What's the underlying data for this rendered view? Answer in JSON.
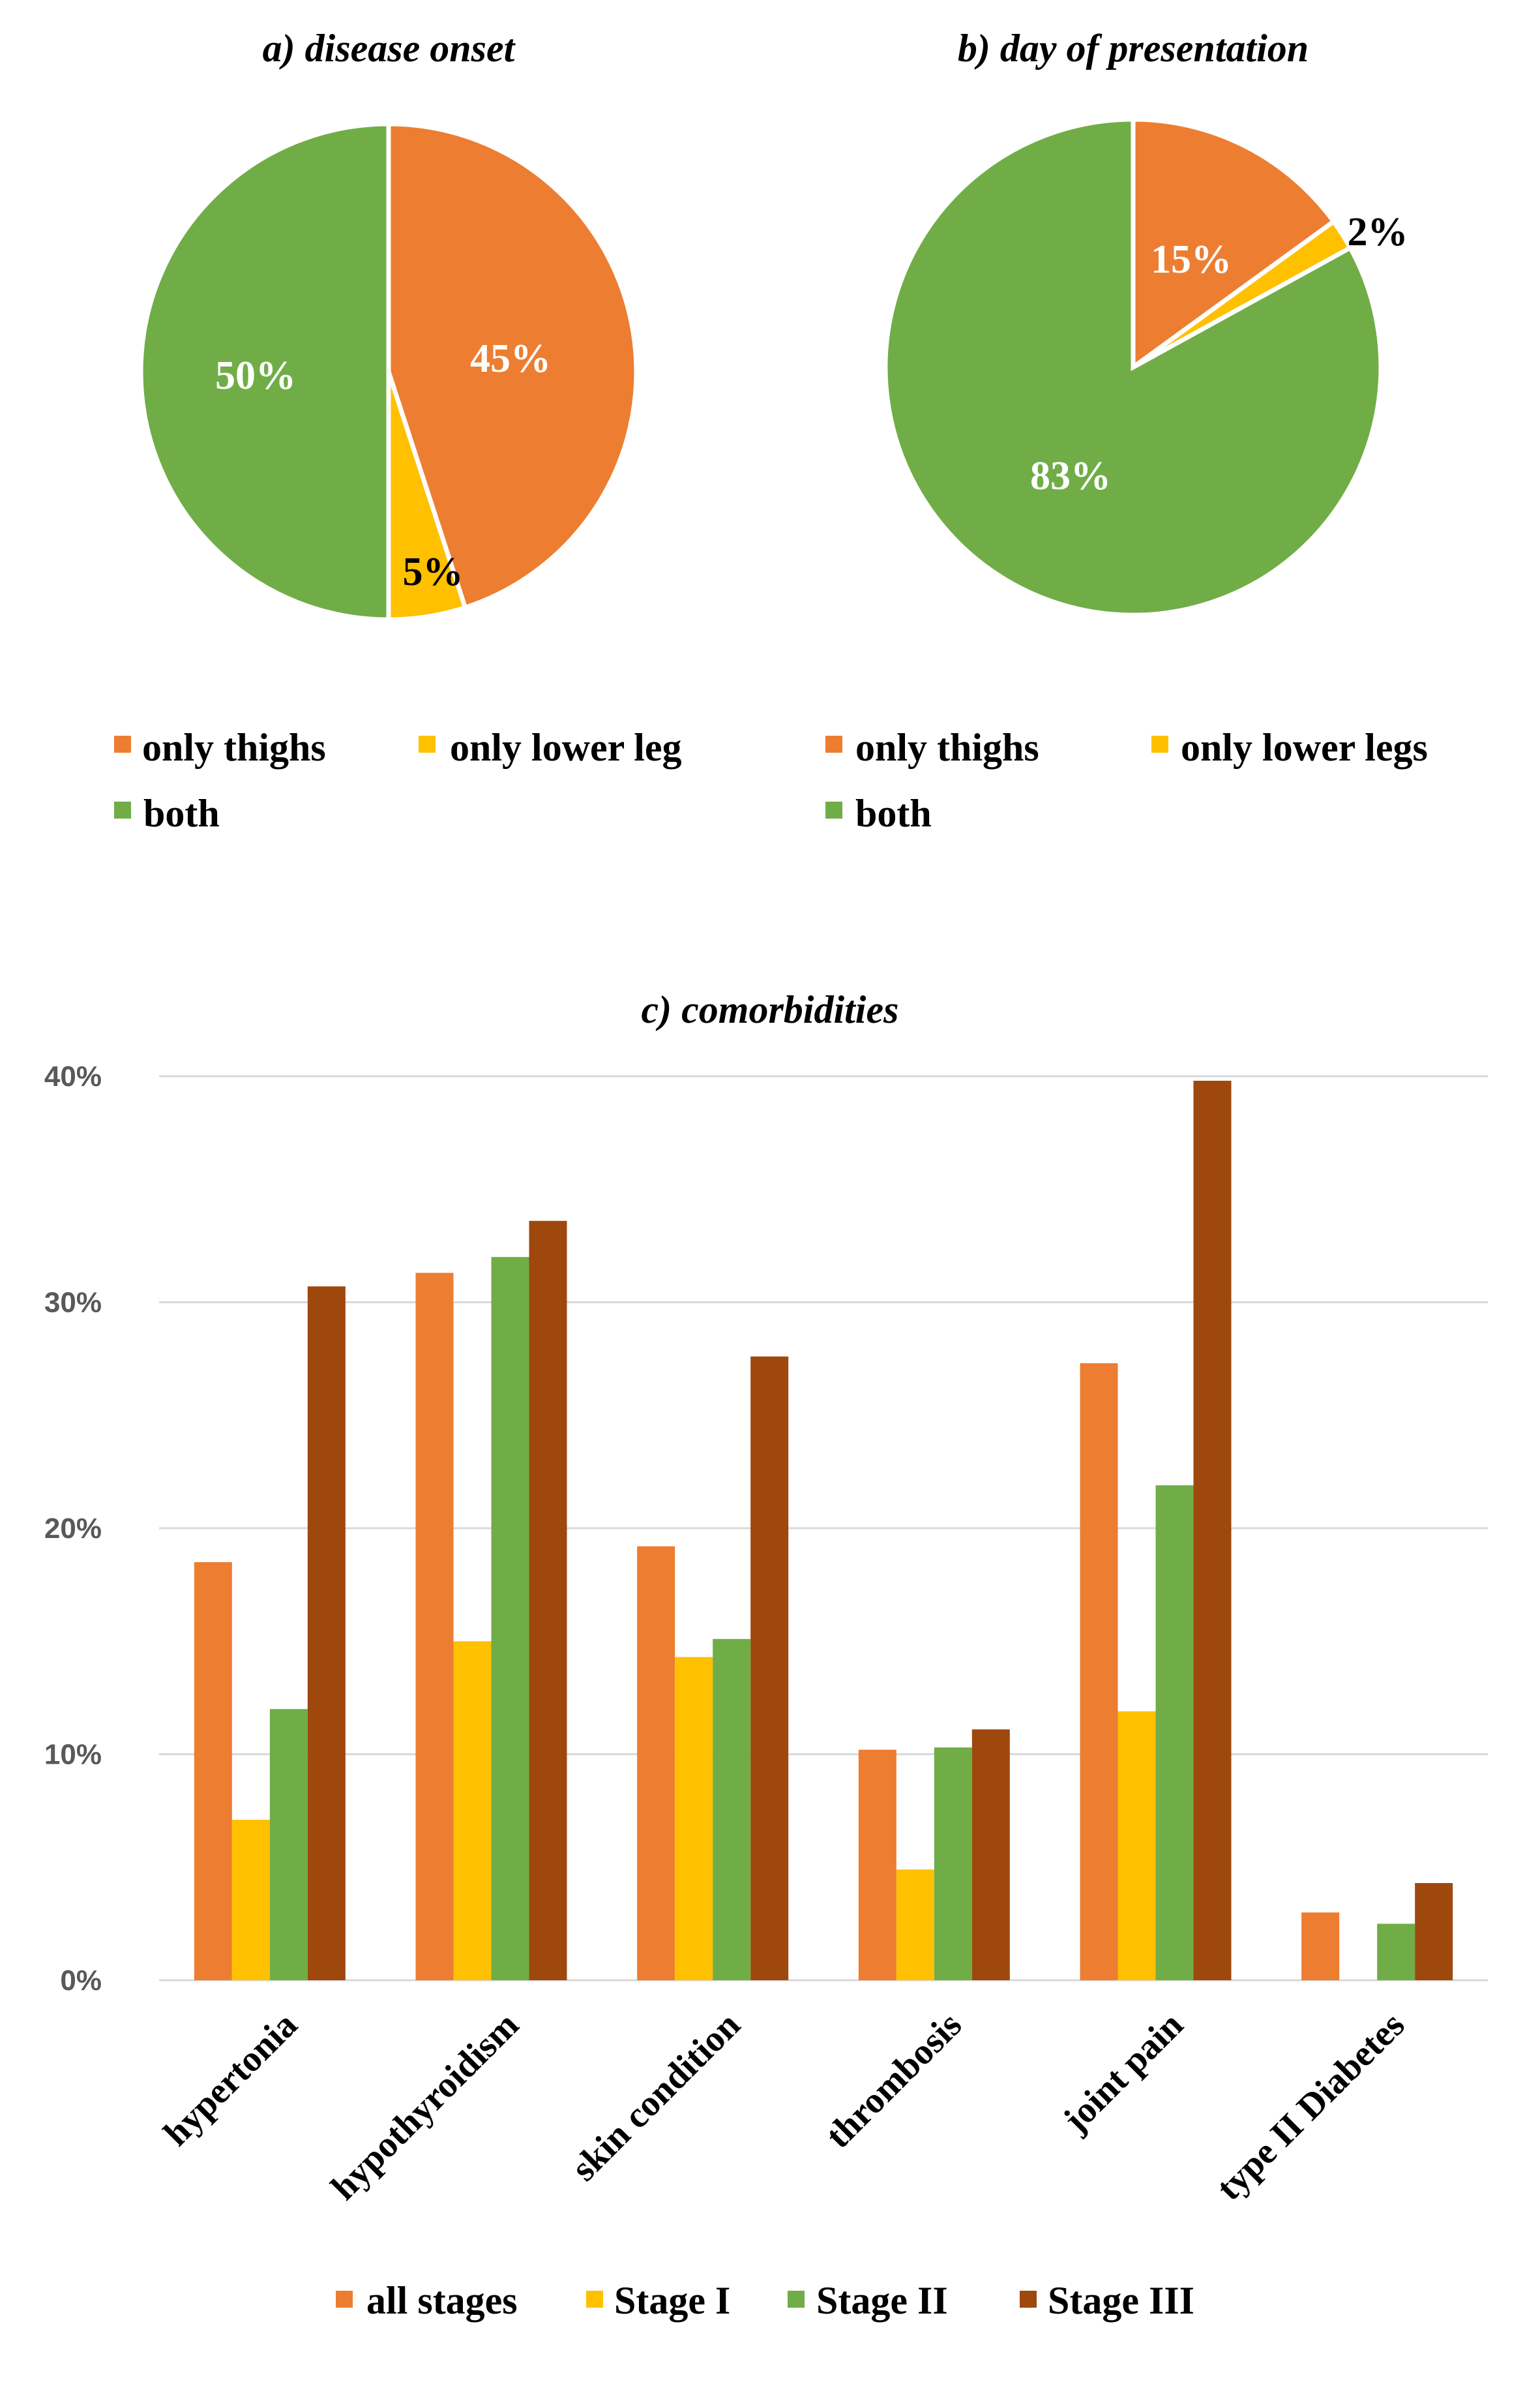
{
  "colors": {
    "thighs": "#ED7D31",
    "lower_leg": "#FFC000",
    "both": "#70AD47",
    "stage3": "#9E480E",
    "grid": "#D9D9D9",
    "axis_text": "#595959"
  },
  "chart_data": [
    {
      "type": "pie",
      "title": "a) disease onset",
      "slices": [
        {
          "label": "only thighs",
          "value": 45,
          "text": "45%",
          "color": "#ED7D31",
          "text_color": "#FFFFFF"
        },
        {
          "label": "only lower leg",
          "value": 5,
          "text": "5%",
          "color": "#FFC000",
          "text_color": "#000000"
        },
        {
          "label": "both",
          "value": 50,
          "text": "50%",
          "color": "#70AD47",
          "text_color": "#FFFFFF"
        }
      ],
      "legend": [
        "only thighs",
        "only lower leg",
        "both"
      ]
    },
    {
      "type": "pie",
      "title": "b) day of presentation",
      "slices": [
        {
          "label": "only thighs",
          "value": 15,
          "text": "15%",
          "color": "#ED7D31",
          "text_color": "#FFFFFF"
        },
        {
          "label": "only lower legs",
          "value": 2,
          "text": "2%",
          "color": "#FFC000",
          "text_color": "#000000"
        },
        {
          "label": "both",
          "value": 83,
          "text": "83%",
          "color": "#70AD47",
          "text_color": "#FFFFFF"
        }
      ],
      "legend": [
        "only thighs",
        "only lower legs",
        "both"
      ]
    },
    {
      "type": "bar",
      "title": "c) comorbidities",
      "categories": [
        "hypertonia",
        "hypothyroidism",
        "skin condition",
        "thrombosis",
        "joint pain",
        "type II Diabetes"
      ],
      "series": [
        {
          "name": "all stages",
          "color": "#ED7D31",
          "values": [
            18.5,
            31.3,
            19.2,
            10.2,
            27.3,
            3.0
          ]
        },
        {
          "name": "Stage I",
          "color": "#FFC000",
          "values": [
            7.1,
            15.0,
            14.3,
            4.9,
            11.9,
            0
          ]
        },
        {
          "name": "Stage II",
          "color": "#70AD47",
          "values": [
            12.0,
            32.0,
            15.1,
            10.3,
            21.9,
            2.5
          ]
        },
        {
          "name": "Stage III",
          "color": "#9E480E",
          "values": [
            30.7,
            33.6,
            27.6,
            11.1,
            39.8,
            4.3
          ]
        }
      ],
      "ylim": [
        0,
        40
      ],
      "yticks": [
        "0%",
        "10%",
        "20%",
        "30%",
        "40%"
      ],
      "ytick_values": [
        0,
        10,
        20,
        30,
        40
      ],
      "xlabel": "",
      "ylabel": "",
      "grid": true,
      "legend_position": "bottom"
    }
  ]
}
